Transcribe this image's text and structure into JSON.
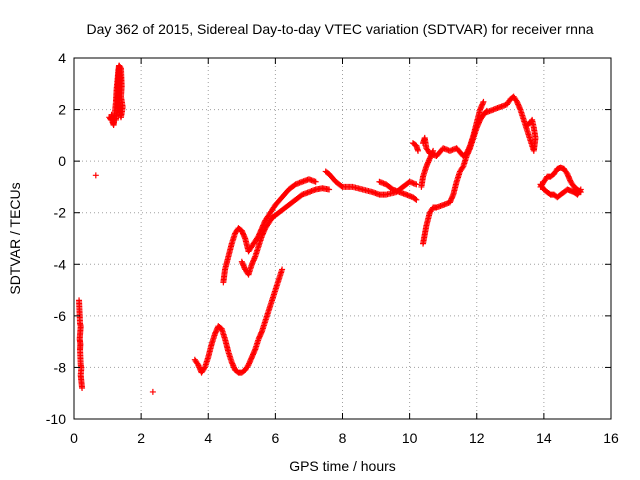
{
  "chart_data": {
    "type": "scatter",
    "title": "Day 362 of 2015, Sidereal Day-to-day VTEC variation (SDTVAR) for receiver rnna",
    "xlabel": "GPS time / hours",
    "ylabel": "SDTVAR / TECUs",
    "xlim": [
      0,
      16
    ],
    "ylim": [
      -10,
      4
    ],
    "xticks": [
      "0",
      "2",
      "4",
      "6",
      "8",
      "10",
      "12",
      "14",
      "16"
    ],
    "yticks": [
      "-10",
      "-8",
      "-6",
      "-4",
      "-2",
      "0",
      "2",
      "4"
    ],
    "grid": true,
    "marker": "plus",
    "color": "#ff0000",
    "segments": [
      [
        [
          0.15,
          -5.4
        ],
        [
          0.18,
          -6.3
        ],
        [
          0.2,
          -6.4
        ],
        [
          0.17,
          -6.9
        ],
        [
          0.19,
          -7.1
        ],
        [
          0.18,
          -7.3
        ],
        [
          0.2,
          -7.9
        ],
        [
          0.22,
          -8.0
        ],
        [
          0.2,
          -8.3
        ],
        [
          0.24,
          -8.8
        ]
      ],
      [
        [
          0.65,
          -0.55
        ]
      ],
      [
        [
          1.05,
          1.7
        ],
        [
          1.1,
          1.6
        ],
        [
          1.12,
          1.8
        ],
        [
          1.15,
          1.5
        ],
        [
          1.18,
          1.4
        ],
        [
          1.2,
          1.6
        ],
        [
          1.22,
          1.9
        ],
        [
          1.25,
          2.3
        ],
        [
          1.27,
          2.8
        ],
        [
          1.3,
          3.2
        ],
        [
          1.32,
          3.5
        ],
        [
          1.34,
          3.7
        ],
        [
          1.36,
          3.5
        ],
        [
          1.38,
          3.2
        ],
        [
          1.35,
          2.9
        ],
        [
          1.33,
          2.6
        ],
        [
          1.3,
          2.3
        ],
        [
          1.35,
          2.0
        ],
        [
          1.4,
          1.7
        ],
        [
          1.45,
          2.1
        ],
        [
          1.4,
          2.5
        ],
        [
          1.42,
          2.9
        ],
        [
          1.4,
          3.6
        ],
        [
          1.35,
          3.7
        ],
        [
          1.32,
          3.3
        ],
        [
          1.28,
          1.9
        ],
        [
          1.25,
          1.6
        ]
      ],
      [
        [
          2.35,
          -8.95
        ]
      ],
      [
        [
          3.6,
          -7.7
        ],
        [
          3.7,
          -7.9
        ],
        [
          3.8,
          -8.2
        ],
        [
          3.9,
          -8.0
        ],
        [
          4.0,
          -7.6
        ],
        [
          4.1,
          -7.1
        ],
        [
          4.2,
          -6.7
        ],
        [
          4.3,
          -6.4
        ],
        [
          4.4,
          -6.5
        ],
        [
          4.5,
          -6.9
        ],
        [
          4.6,
          -7.4
        ],
        [
          4.7,
          -7.8
        ],
        [
          4.8,
          -8.1
        ],
        [
          4.9,
          -8.2
        ],
        [
          5.0,
          -8.2
        ],
        [
          5.1,
          -8.1
        ],
        [
          5.2,
          -7.9
        ],
        [
          5.3,
          -7.6
        ],
        [
          5.4,
          -7.3
        ],
        [
          5.5,
          -6.9
        ],
        [
          5.6,
          -6.6
        ],
        [
          5.7,
          -6.2
        ],
        [
          5.8,
          -5.8
        ],
        [
          5.9,
          -5.4
        ],
        [
          6.0,
          -5.0
        ],
        [
          6.1,
          -4.6
        ],
        [
          6.2,
          -4.2
        ]
      ],
      [
        [
          4.45,
          -4.7
        ],
        [
          4.5,
          -4.2
        ],
        [
          4.6,
          -3.7
        ],
        [
          4.7,
          -3.2
        ],
        [
          4.8,
          -2.8
        ],
        [
          4.9,
          -2.6
        ],
        [
          5.0,
          -2.7
        ],
        [
          5.1,
          -3.0
        ],
        [
          5.2,
          -3.5
        ],
        [
          5.3,
          -3.3
        ],
        [
          5.4,
          -3.1
        ],
        [
          5.5,
          -2.9
        ],
        [
          5.6,
          -2.6
        ],
        [
          5.7,
          -2.3
        ],
        [
          5.8,
          -2.1
        ],
        [
          5.9,
          -1.9
        ],
        [
          6.0,
          -1.7
        ],
        [
          6.2,
          -1.4
        ],
        [
          6.4,
          -1.1
        ],
        [
          6.6,
          -0.9
        ],
        [
          6.8,
          -0.8
        ],
        [
          7.0,
          -0.7
        ],
        [
          7.2,
          -0.8
        ]
      ],
      [
        [
          5.0,
          -3.9
        ],
        [
          5.1,
          -4.2
        ],
        [
          5.2,
          -4.4
        ],
        [
          5.3,
          -4.0
        ],
        [
          5.4,
          -3.7
        ],
        [
          5.5,
          -3.3
        ],
        [
          5.6,
          -2.9
        ],
        [
          5.7,
          -2.6
        ],
        [
          5.8,
          -2.4
        ],
        [
          5.9,
          -2.2
        ],
        [
          6.0,
          -2.1
        ],
        [
          6.2,
          -1.9
        ],
        [
          6.4,
          -1.7
        ],
        [
          6.6,
          -1.5
        ],
        [
          6.8,
          -1.3
        ],
        [
          7.0,
          -1.2
        ],
        [
          7.2,
          -1.1
        ],
        [
          7.4,
          -1.05
        ],
        [
          7.6,
          -1.1
        ]
      ],
      [
        [
          7.5,
          -0.4
        ],
        [
          7.6,
          -0.5
        ],
        [
          7.8,
          -0.8
        ],
        [
          8.0,
          -1.0
        ],
        [
          8.3,
          -1.0
        ],
        [
          8.6,
          -1.1
        ],
        [
          8.9,
          -1.2
        ],
        [
          9.1,
          -1.3
        ],
        [
          9.3,
          -1.3
        ],
        [
          9.6,
          -1.2
        ],
        [
          9.8,
          -1.0
        ],
        [
          10.0,
          -0.8
        ],
        [
          10.2,
          -0.9
        ]
      ],
      [
        [
          9.1,
          -0.8
        ],
        [
          9.3,
          -0.9
        ],
        [
          9.5,
          -1.1
        ],
        [
          9.7,
          -1.2
        ],
        [
          9.9,
          -1.3
        ],
        [
          10.1,
          -1.4
        ],
        [
          10.2,
          -1.5
        ]
      ],
      [
        [
          10.1,
          0.7
        ],
        [
          10.2,
          0.6
        ],
        [
          10.25,
          0.4
        ]
      ],
      [
        [
          10.4,
          0.7
        ],
        [
          10.45,
          0.9
        ],
        [
          10.5,
          0.5
        ],
        [
          10.6,
          0.3
        ],
        [
          10.8,
          0.2
        ],
        [
          11.0,
          0.5
        ],
        [
          11.2,
          0.4
        ],
        [
          11.4,
          0.5
        ],
        [
          11.6,
          0.2
        ],
        [
          11.7,
          0.3
        ],
        [
          11.8,
          0.6
        ],
        [
          11.9,
          1.0
        ],
        [
          12.0,
          1.5
        ],
        [
          12.1,
          2.0
        ],
        [
          12.2,
          2.3
        ]
      ],
      [
        [
          10.4,
          -3.2
        ],
        [
          10.5,
          -2.5
        ],
        [
          10.6,
          -2.0
        ],
        [
          10.7,
          -1.8
        ],
        [
          10.8,
          -1.8
        ],
        [
          11.0,
          -1.7
        ],
        [
          11.2,
          -1.6
        ],
        [
          11.3,
          -1.3
        ],
        [
          11.4,
          -0.8
        ],
        [
          11.5,
          -0.4
        ],
        [
          11.6,
          -0.2
        ],
        [
          11.7,
          0.2
        ],
        [
          11.8,
          0.5
        ],
        [
          11.9,
          0.9
        ],
        [
          12.0,
          1.3
        ],
        [
          12.1,
          1.6
        ],
        [
          12.2,
          1.8
        ],
        [
          12.3,
          1.95
        ]
      ],
      [
        [
          10.35,
          -1.0
        ],
        [
          10.4,
          -0.6
        ],
        [
          10.5,
          -0.2
        ],
        [
          10.6,
          0.1
        ],
        [
          10.7,
          0.4
        ]
      ],
      [
        [
          12.3,
          1.9
        ],
        [
          12.5,
          2.0
        ],
        [
          12.7,
          2.1
        ],
        [
          12.9,
          2.2
        ],
        [
          13.0,
          2.4
        ],
        [
          13.1,
          2.5
        ],
        [
          13.2,
          2.3
        ],
        [
          13.3,
          2.0
        ],
        [
          13.4,
          1.6
        ],
        [
          13.5,
          1.2
        ],
        [
          13.6,
          0.8
        ],
        [
          13.7,
          0.4
        ],
        [
          13.75,
          0.9
        ],
        [
          13.7,
          1.3
        ],
        [
          13.65,
          1.6
        ],
        [
          13.6,
          1.5
        ],
        [
          13.5,
          1.4
        ]
      ],
      [
        [
          13.9,
          -1.0
        ],
        [
          14.0,
          -0.8
        ],
        [
          14.1,
          -0.6
        ],
        [
          14.2,
          -0.6
        ],
        [
          14.3,
          -0.5
        ],
        [
          14.4,
          -0.3
        ],
        [
          14.5,
          -0.25
        ],
        [
          14.6,
          -0.3
        ],
        [
          14.7,
          -0.5
        ],
        [
          14.8,
          -0.8
        ],
        [
          14.9,
          -1.0
        ],
        [
          15.0,
          -1.1
        ],
        [
          15.1,
          -1.2
        ]
      ],
      [
        [
          13.9,
          -0.9
        ],
        [
          14.0,
          -1.1
        ],
        [
          14.1,
          -1.2
        ],
        [
          14.2,
          -1.3
        ],
        [
          14.3,
          -1.3
        ],
        [
          14.4,
          -1.4
        ],
        [
          14.5,
          -1.3
        ],
        [
          14.6,
          -1.2
        ],
        [
          14.7,
          -1.1
        ],
        [
          14.8,
          -1.15
        ],
        [
          14.9,
          -1.2
        ],
        [
          15.0,
          -1.3
        ],
        [
          15.1,
          -1.1
        ]
      ]
    ]
  }
}
